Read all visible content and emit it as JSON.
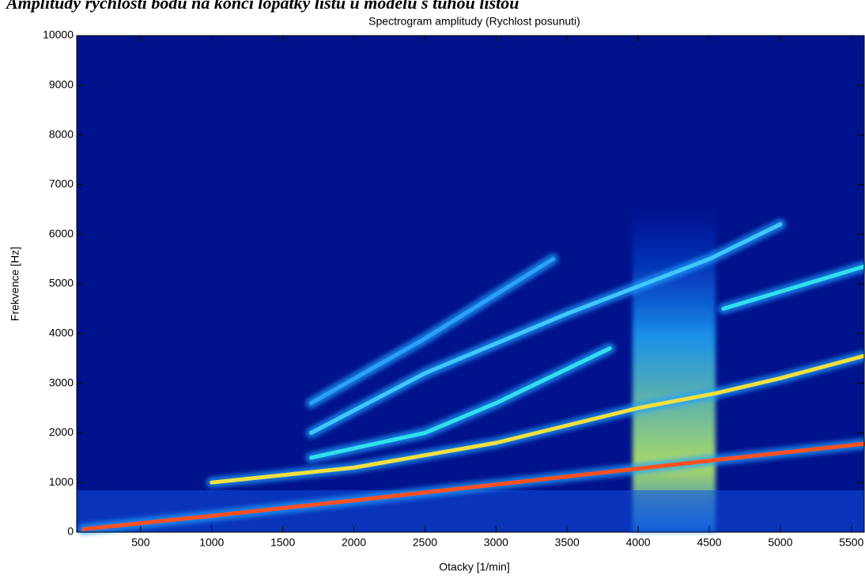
{
  "page_title": "Amplitudy rychlosti bodu na konci lopatky listu u modelu s tuhou lištou",
  "chart_data": {
    "type": "line",
    "title": "Spectrogram amplitudy (Rychlost posunuti)",
    "x_label": "Otacky [1/min]",
    "y_label": "Frekvence [Hz]",
    "xlim": [
      50,
      5590
    ],
    "ylim": [
      0,
      10000
    ],
    "xticks": [
      500,
      1000,
      1500,
      2000,
      2500,
      3000,
      3500,
      4000,
      4500,
      5000,
      5500
    ],
    "yticks": [
      0,
      1000,
      2000,
      3000,
      4000,
      5000,
      6000,
      7000,
      8000,
      9000,
      10000
    ],
    "background": "#00128c",
    "grid": false,
    "series": [
      {
        "color": "#ff5020",
        "x": [
          100,
          1000,
          2000,
          3000,
          4000,
          4500,
          5590
        ],
        "values": [
          60,
          330,
          640,
          960,
          1280,
          1440,
          1780
        ]
      },
      {
        "color": "#f0e040",
        "x": [
          1000,
          2000,
          3000,
          3500,
          4000,
          4550,
          5000,
          5590
        ],
        "values": [
          1000,
          1300,
          1800,
          2150,
          2500,
          2800,
          3100,
          3550
        ]
      },
      {
        "color": "#30e0f0",
        "x": [
          1700,
          2500,
          3000,
          3800,
          4300,
          4600,
          5590
        ],
        "values": [
          1500,
          2000,
          2600,
          3700,
          null,
          4500,
          5350
        ]
      },
      {
        "color": "#40c8ff",
        "x": [
          1700,
          2500,
          3500,
          4500,
          5000
        ],
        "values": [
          2000,
          3200,
          4400,
          5500,
          6200
        ]
      },
      {
        "color": "#2aa0ff",
        "x": [
          1700,
          2500,
          3400
        ],
        "values": [
          2600,
          3900,
          5500
        ]
      }
    ]
  }
}
